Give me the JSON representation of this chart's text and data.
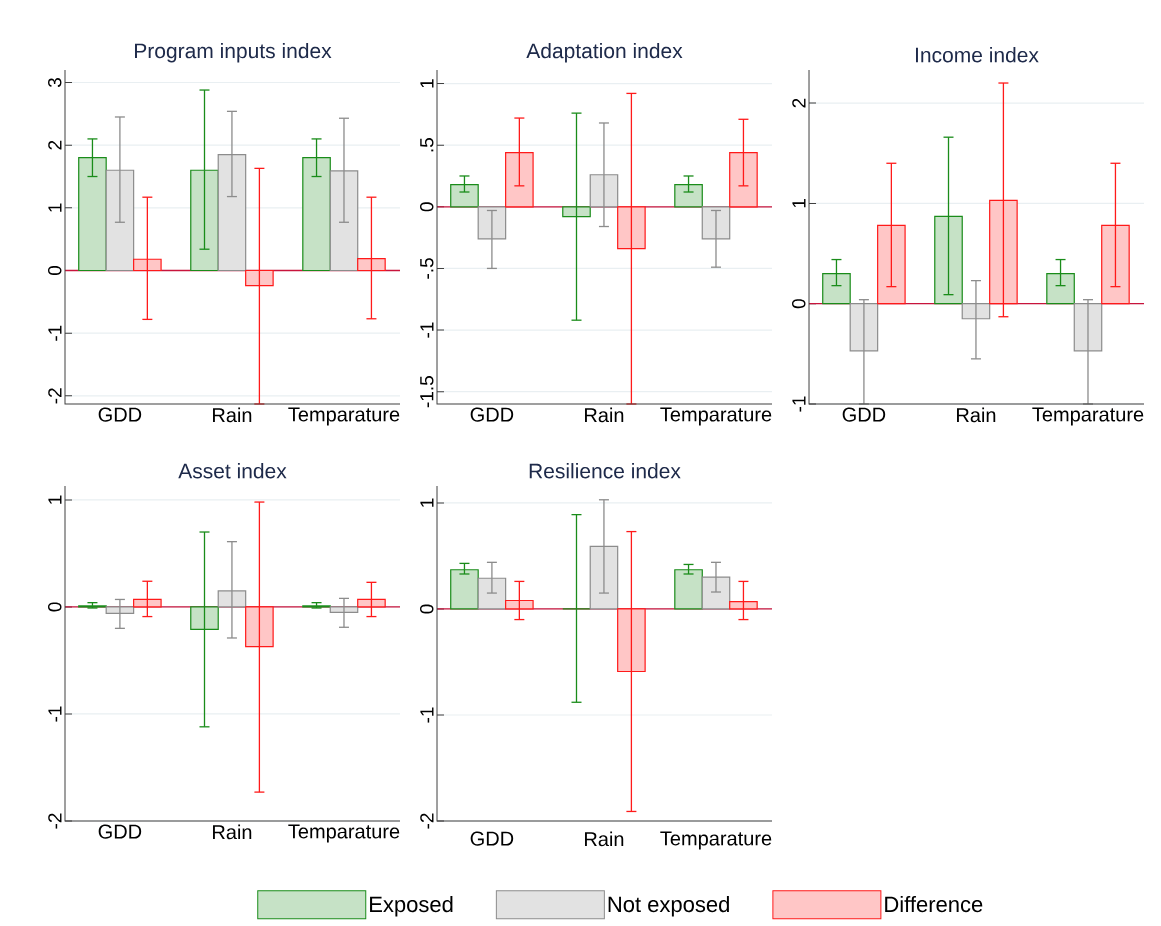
{
  "chart_data": [
    {
      "type": "bar",
      "title": "Program inputs index",
      "categories": [
        "GDD",
        "Rain",
        "Temparature"
      ],
      "ylim": [
        -2.13,
        3.2
      ],
      "yticks": [
        -2,
        -1,
        0,
        1,
        2,
        3
      ],
      "grid": "y",
      "ref_lines": [
        {
          "axis": "y",
          "value": 0,
          "color": "#c8143c"
        }
      ],
      "series": [
        {
          "color": "#1a8c1a",
          "values": [
            1.8,
            1.6,
            1.8
          ],
          "errors": [
            [
              1.5,
              2.1
            ],
            [
              0.34,
              2.88
            ],
            [
              1.5,
              2.1
            ]
          ]
        },
        {
          "color": "#8c8c8c",
          "values": [
            1.6,
            1.85,
            1.59
          ],
          "errors": [
            [
              0.77,
              2.45
            ],
            [
              1.18,
              2.54
            ],
            [
              0.77,
              2.43
            ]
          ]
        },
        {
          "color": "#ff1a1a",
          "values": [
            0.18,
            -0.24,
            0.19
          ],
          "errors": [
            [
              -0.78,
              1.17
            ],
            [
              -2.13,
              1.63
            ],
            [
              -0.77,
              1.17
            ]
          ]
        }
      ]
    },
    {
      "type": "bar",
      "title": "Adaptation index",
      "categories": [
        "GDD",
        "Rain",
        "Temparature"
      ],
      "ylim": [
        -1.6,
        1.11
      ],
      "yticks": [
        {
          "value": -1.5,
          "label": "-1.5"
        },
        -1,
        {
          "value": -0.5,
          "label": "-.5"
        },
        0,
        {
          "value": 0.5,
          "label": ".5"
        },
        1
      ],
      "grid": "y",
      "ref_lines": [
        {
          "axis": "y",
          "value": 0,
          "color": "#c8143c"
        }
      ],
      "series": [
        {
          "color": "#1a8c1a",
          "values": [
            0.18,
            -0.08,
            0.18
          ],
          "errors": [
            [
              0.12,
              0.25
            ],
            [
              -0.92,
              0.76
            ],
            [
              0.12,
              0.25
            ]
          ]
        },
        {
          "color": "#8c8c8c",
          "values": [
            -0.26,
            0.26,
            -0.26
          ],
          "errors": [
            [
              -0.5,
              -0.03
            ],
            [
              -0.16,
              0.68
            ],
            [
              -0.49,
              -0.03
            ]
          ]
        },
        {
          "color": "#ff1a1a",
          "values": [
            0.44,
            -0.34,
            0.44
          ],
          "errors": [
            [
              0.17,
              0.72
            ],
            [
              -1.6,
              0.92
            ],
            [
              0.17,
              0.71
            ]
          ]
        }
      ]
    },
    {
      "type": "bar",
      "title": "Income index",
      "categories": [
        "GDD",
        "Rain",
        "Temparature"
      ],
      "ylim": [
        -1,
        2.33
      ],
      "yticks": [
        -1,
        0,
        1,
        2
      ],
      "grid": "y",
      "ref_lines": [
        {
          "axis": "y",
          "value": 0,
          "color": "#c8143c"
        }
      ],
      "series": [
        {
          "color": "#1a8c1a",
          "values": [
            0.3,
            0.87,
            0.3
          ],
          "errors": [
            [
              0.18,
              0.44
            ],
            [
              0.09,
              1.66
            ],
            [
              0.18,
              0.44
            ]
          ]
        },
        {
          "color": "#8c8c8c",
          "values": [
            -0.47,
            -0.15,
            -0.47
          ],
          "errors": [
            [
              -1,
              0.04
            ],
            [
              -0.55,
              0.23
            ],
            [
              -1,
              0.04
            ]
          ]
        },
        {
          "color": "#ff1a1a",
          "values": [
            0.78,
            1.03,
            0.78
          ],
          "errors": [
            [
              0.17,
              1.4
            ],
            [
              -0.13,
              2.2
            ],
            [
              0.17,
              1.4
            ]
          ]
        }
      ]
    },
    {
      "type": "bar",
      "title": "Asset index",
      "categories": [
        "GDD",
        "Rain",
        "Temparature"
      ],
      "ylim": [
        -2,
        1.13
      ],
      "yticks": [
        -2,
        -1,
        0,
        1
      ],
      "grid": "y",
      "ref_lines": [
        {
          "axis": "y",
          "value": 0,
          "color": "#c8143c"
        }
      ],
      "series": [
        {
          "color": "#1a8c1a",
          "values": [
            0.01,
            -0.21,
            0.01
          ],
          "errors": [
            [
              -0.01,
              0.04
            ],
            [
              -1.12,
              0.7
            ],
            [
              -0.01,
              0.04
            ]
          ]
        },
        {
          "color": "#8c8c8c",
          "values": [
            -0.06,
            0.15,
            -0.05
          ],
          "errors": [
            [
              -0.2,
              0.07
            ],
            [
              -0.29,
              0.61
            ],
            [
              -0.19,
              0.08
            ]
          ]
        },
        {
          "color": "#ff1a1a",
          "values": [
            0.07,
            -0.37,
            0.07
          ],
          "errors": [
            [
              -0.09,
              0.24
            ],
            [
              -1.73,
              0.98
            ],
            [
              -0.09,
              0.23
            ]
          ]
        }
      ]
    },
    {
      "type": "bar",
      "title": "Resilience index",
      "categories": [
        "GDD",
        "Rain",
        "Temparature"
      ],
      "ylim": [
        -2,
        1.16
      ],
      "yticks": [
        -2,
        -1,
        0,
        1
      ],
      "grid": "y",
      "legend": "bottom",
      "ref_lines": [
        {
          "axis": "y",
          "value": 0,
          "color": "#c8143c"
        }
      ],
      "series": [
        {
          "name": "Exposed",
          "color": "#1a8c1a",
          "values": [
            0.37,
            0,
            0.37
          ],
          "errors": [
            [
              0.33,
              0.43
            ],
            [
              -0.88,
              0.89
            ],
            [
              0.33,
              0.42
            ]
          ]
        },
        {
          "name": "Not exposed",
          "color": "#8c8c8c",
          "values": [
            0.29,
            0.59,
            0.3
          ],
          "errors": [
            [
              0.15,
              0.44
            ],
            [
              0.15,
              1.03
            ],
            [
              0.16,
              0.44
            ]
          ]
        },
        {
          "name": "Difference",
          "color": "#ff1a1a",
          "values": [
            0.08,
            -0.59,
            0.07
          ],
          "errors": [
            [
              -0.1,
              0.26
            ],
            [
              -1.91,
              0.73
            ],
            [
              -0.1,
              0.26
            ]
          ]
        }
      ]
    }
  ]
}
